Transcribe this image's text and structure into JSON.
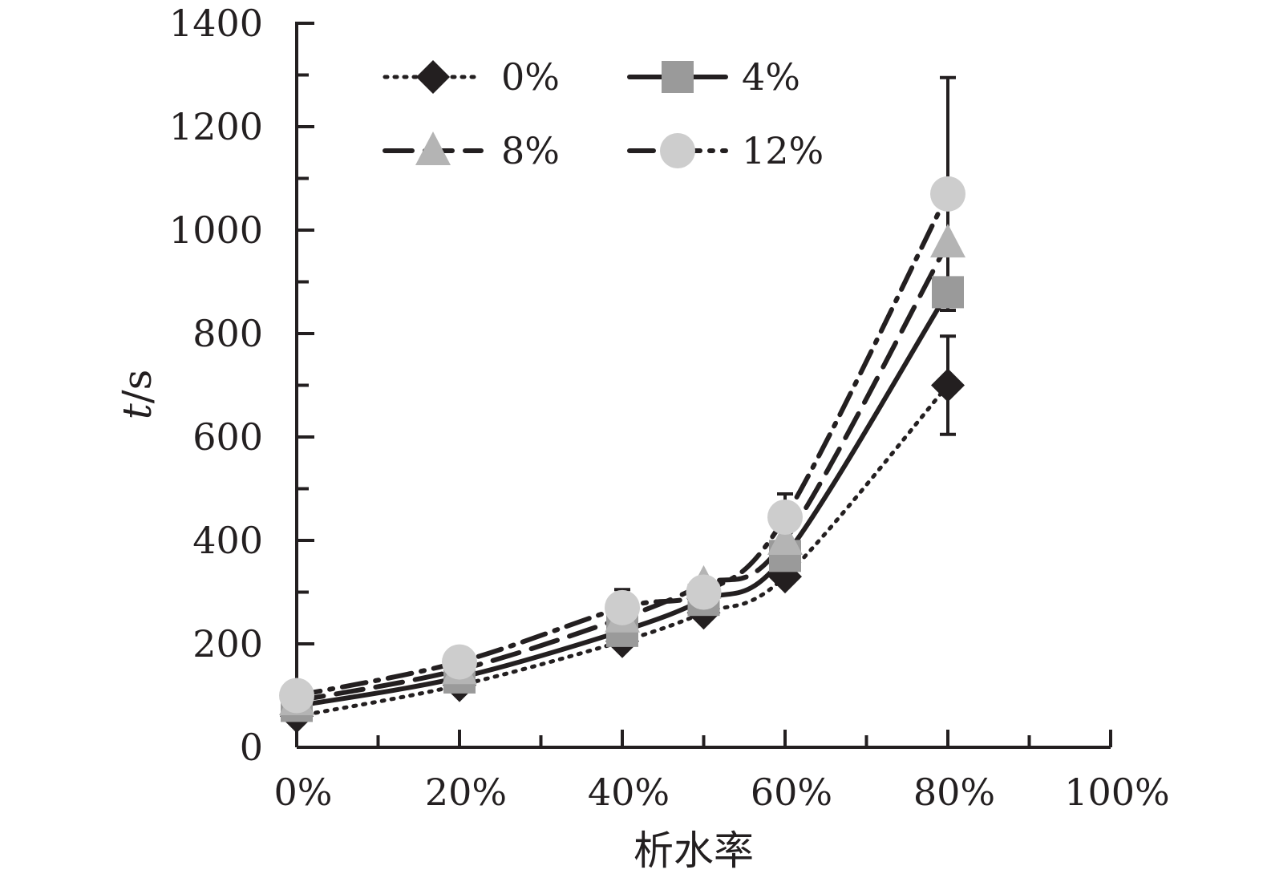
{
  "chart_data": {
    "type": "line",
    "xlabel": "析水率",
    "ylabel_italic": "t",
    "ylabel_unit": "/s",
    "x_ticks": [
      "0%",
      "20%",
      "40%",
      "60%",
      "80%",
      "100%"
    ],
    "y_ticks": [
      "0",
      "200",
      "400",
      "600",
      "800",
      "1000",
      "1200",
      "1400"
    ],
    "xlim": [
      0,
      100
    ],
    "ylim": [
      0,
      1400
    ],
    "grid": false,
    "legend_position": "top-left",
    "x": [
      0,
      20,
      40,
      50,
      60,
      80
    ],
    "series": [
      {
        "name": "0%",
        "values": [
          60,
          120,
          205,
          260,
          330,
          700
        ],
        "marker": "diamond",
        "color": "#231f20",
        "line": "dotted",
        "errors": [
          0,
          0,
          0,
          0,
          0,
          95
        ]
      },
      {
        "name": "4%",
        "values": [
          80,
          135,
          225,
          285,
          370,
          880
        ],
        "marker": "square",
        "color": "#9a9a9a",
        "line": "solid",
        "errors": [
          0,
          0,
          0,
          0,
          0,
          0
        ]
      },
      {
        "name": "8%",
        "values": [
          90,
          150,
          250,
          315,
          400,
          975
        ],
        "marker": "triangle",
        "color": "#b4b4b4",
        "line": "dashed",
        "errors": [
          0,
          0,
          0,
          0,
          0,
          0
        ]
      },
      {
        "name": "12%",
        "values": [
          100,
          165,
          270,
          300,
          445,
          1070
        ],
        "marker": "circle",
        "color": "#cdcdcd",
        "line": "dashdot",
        "errors": [
          0,
          0,
          35,
          0,
          45,
          225
        ]
      }
    ]
  }
}
